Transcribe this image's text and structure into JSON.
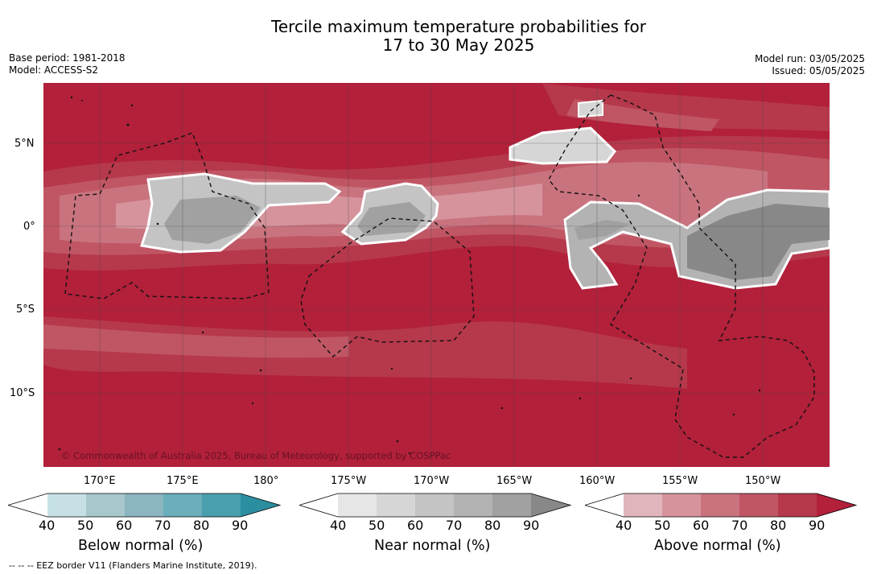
{
  "title": {
    "line1": "Tercile maximum temperature probabilities for",
    "line2": "17 to 30 May 2025"
  },
  "meta": {
    "base_period": "Base period: 1981-2018",
    "model": "Model: ACCESS-S2",
    "model_run": "Model run: 03/05/2025",
    "issued": "Issued: 05/05/2025"
  },
  "map": {
    "copyright": "© Commonwealth of Australia 2025, Bureau of Meteorology, supported by COSPPac",
    "lat_labels": [
      "5°N",
      "0°",
      "5°S",
      "10°S"
    ],
    "lon_labels": [
      "170°E",
      "175°E",
      "180°",
      "175°W",
      "170°W",
      "165°W",
      "160°W",
      "155°W",
      "150°W"
    ],
    "colors": {
      "above_max": "#b2203a",
      "sea_grey": "#888888"
    }
  },
  "colorbars": [
    {
      "title": "Below normal (%)",
      "ticks": [
        "40",
        "50",
        "60",
        "70",
        "80",
        "90"
      ],
      "colors": [
        "#ffffff",
        "#c7e0e6",
        "#a8c7cd",
        "#8bb5c0",
        "#6aaebb",
        "#4a9fae",
        "#2b8ea1"
      ]
    },
    {
      "title": "Near normal (%)",
      "ticks": [
        "40",
        "50",
        "60",
        "70",
        "80",
        "90"
      ],
      "colors": [
        "#ffffff",
        "#e6e6e6",
        "#d6d6d6",
        "#c4c4c4",
        "#b3b3b3",
        "#a1a1a1",
        "#888888"
      ]
    },
    {
      "title": "Above normal (%)",
      "ticks": [
        "40",
        "50",
        "60",
        "70",
        "80",
        "90"
      ],
      "colors": [
        "#ffffff",
        "#e0b5bb",
        "#d6939c",
        "#c9737e",
        "#c05664",
        "#b6384b",
        "#b2203a"
      ]
    }
  ],
  "footnote": "-- -- -- EEZ border V11 (Flanders Marine Institute, 2019)."
}
